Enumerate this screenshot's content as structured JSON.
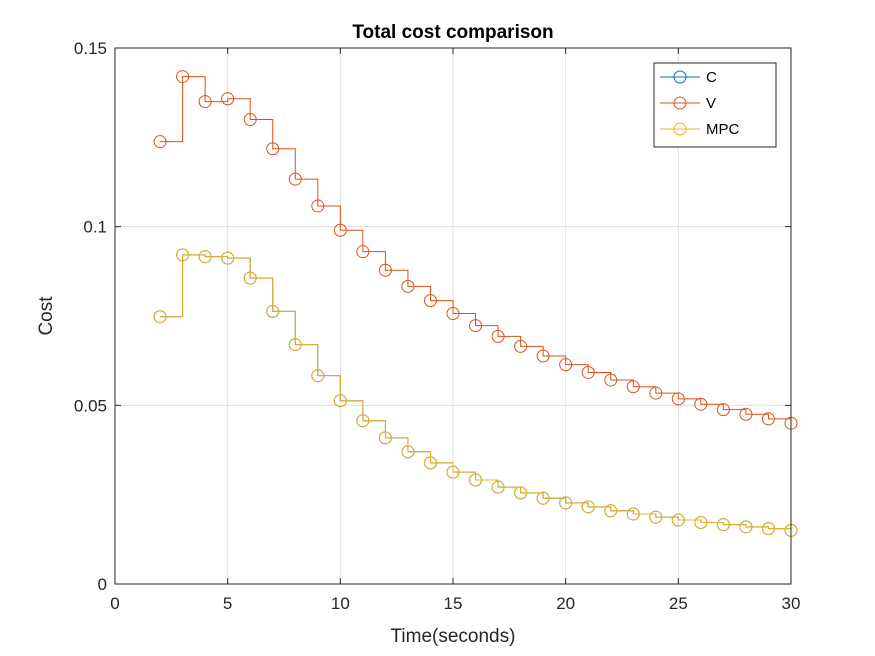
{
  "chart_data": {
    "type": "line",
    "title": "Total cost comparison",
    "xlabel": "Time(seconds)",
    "ylabel": "Cost",
    "xlim": [
      0,
      30
    ],
    "ylim": [
      0,
      0.15
    ],
    "xticks": [
      0,
      5,
      10,
      15,
      20,
      25,
      30
    ],
    "xtick_labels": [
      "0",
      "5",
      "10",
      "15",
      "20",
      "25",
      "30"
    ],
    "yticks": [
      0,
      0.05,
      0.1,
      0.15
    ],
    "ytick_labels": [
      "0",
      "0.05",
      "0.1",
      "0.15"
    ],
    "grid": true,
    "legend_position": "top-right",
    "x": [
      2,
      3,
      4,
      5,
      6,
      7,
      8,
      9,
      10,
      11,
      12,
      13,
      14,
      15,
      16,
      17,
      18,
      19,
      20,
      21,
      22,
      23,
      24,
      25,
      26,
      27,
      28,
      29,
      30
    ],
    "series": [
      {
        "name": "C",
        "color": "#0072BD",
        "marker": "circle",
        "style": "stairs",
        "values": [
          0.0748,
          0.0921,
          0.0916,
          0.0912,
          0.0856,
          0.0763,
          0.067,
          0.0583,
          0.0513,
          0.0457,
          0.0409,
          0.037,
          0.0339,
          0.0313,
          0.0291,
          0.0271,
          0.0255,
          0.024,
          0.0227,
          0.0216,
          0.0205,
          0.0196,
          0.0187,
          0.0179,
          0.0172,
          0.0166,
          0.016,
          0.0155,
          0.015
        ]
      },
      {
        "name": "V",
        "color": "#D95319",
        "marker": "circle",
        "style": "stairs",
        "values": [
          0.1238,
          0.142,
          0.135,
          0.1358,
          0.13,
          0.1218,
          0.1133,
          0.1058,
          0.099,
          0.093,
          0.0878,
          0.0833,
          0.0793,
          0.0757,
          0.0723,
          0.0693,
          0.0665,
          0.0638,
          0.0614,
          0.0592,
          0.0571,
          0.0552,
          0.0534,
          0.0518,
          0.0503,
          0.0488,
          0.0475,
          0.0462,
          0.045
        ]
      },
      {
        "name": "MPC",
        "color": "#EDB120",
        "marker": "circle",
        "style": "stairs",
        "values": [
          0.0748,
          0.0921,
          0.0916,
          0.0912,
          0.0856,
          0.0763,
          0.067,
          0.0583,
          0.0513,
          0.0457,
          0.0409,
          0.037,
          0.0339,
          0.0313,
          0.0291,
          0.0271,
          0.0255,
          0.024,
          0.0227,
          0.0216,
          0.0205,
          0.0196,
          0.0187,
          0.0179,
          0.0172,
          0.0166,
          0.016,
          0.0155,
          0.015
        ]
      }
    ]
  }
}
